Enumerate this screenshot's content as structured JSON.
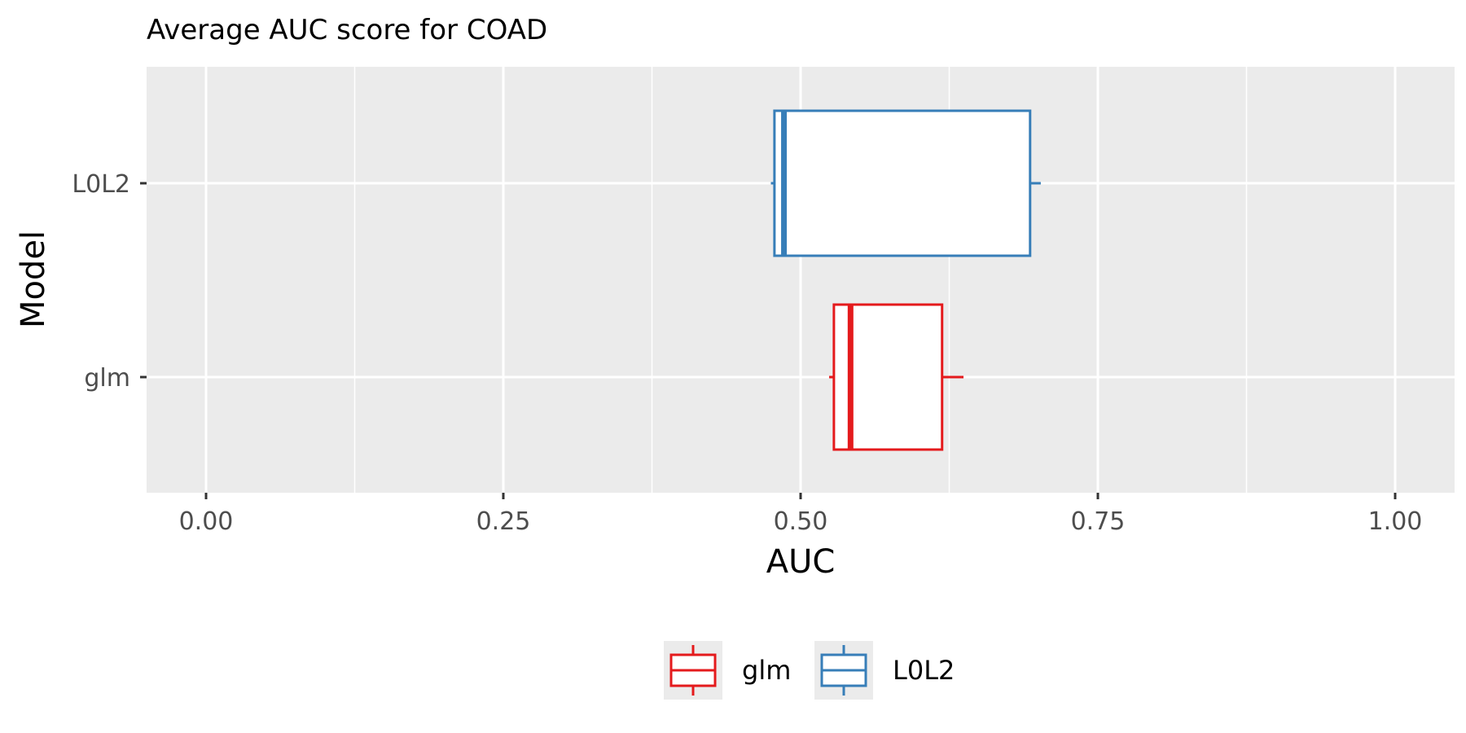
{
  "chart_data": {
    "type": "boxplot",
    "orientation": "horizontal",
    "title": "Average AUC score for COAD",
    "xlabel": "AUC",
    "ylabel": "Model",
    "xlim": [
      -0.05,
      1.05
    ],
    "x_ticks": [
      0.0,
      0.25,
      0.5,
      0.75,
      1.0
    ],
    "x_tick_labels": [
      "0.00",
      "0.25",
      "0.50",
      "0.75",
      "1.00"
    ],
    "grid": true,
    "legend_position": "bottom",
    "categories": [
      "L0L2",
      "glm"
    ],
    "series": [
      {
        "name": "glm",
        "color": "#e41a1c",
        "whisker_low": 0.524,
        "q1": 0.528,
        "median": 0.542,
        "q3": 0.619,
        "whisker_high": 0.637
      },
      {
        "name": "L0L2",
        "color": "#377eb8",
        "whisker_low": 0.475,
        "q1": 0.478,
        "median": 0.486,
        "q3": 0.693,
        "whisker_high": 0.702
      }
    ]
  }
}
